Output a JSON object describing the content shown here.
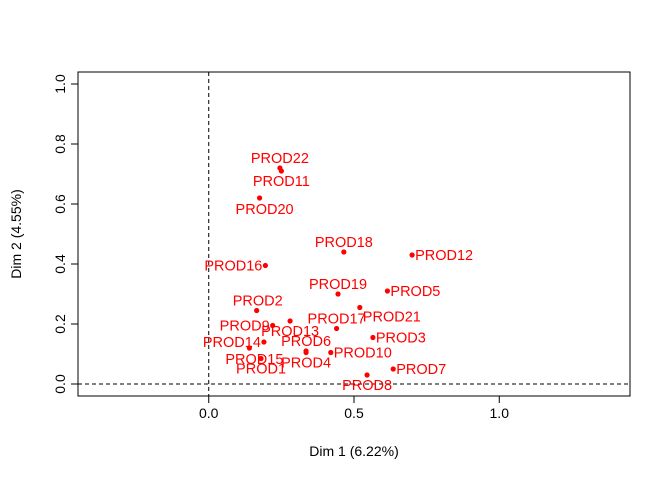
{
  "chart_data": {
    "type": "scatter",
    "xlabel": "Dim 1 (6.22%)",
    "ylabel": "Dim 2 (4.55%)",
    "xlim": [
      -0.45,
      1.45
    ],
    "ylim": [
      -0.04,
      1.04
    ],
    "x_ticks": [
      0.0,
      0.5,
      1.0
    ],
    "y_ticks": [
      0.0,
      0.2,
      0.4,
      0.6,
      0.8,
      1.0
    ],
    "x_tick_labels": [
      "0.0",
      "0.5",
      "1.0"
    ],
    "y_tick_labels": [
      "0.0",
      "0.2",
      "0.4",
      "0.6",
      "0.8",
      "1.0"
    ],
    "reference_lines": {
      "x": 0,
      "y": 0
    },
    "grid": false,
    "point_color": "#ff0000",
    "points": [
      {
        "label": "PROD1",
        "x": 0.18,
        "y": 0.085,
        "pos": "below"
      },
      {
        "label": "PROD2",
        "x": 0.165,
        "y": 0.245,
        "pos": "left-above"
      },
      {
        "label": "PROD3",
        "x": 0.565,
        "y": 0.155,
        "pos": "right"
      },
      {
        "label": "PROD4",
        "x": 0.335,
        "y": 0.105,
        "pos": "below"
      },
      {
        "label": "PROD5",
        "x": 0.615,
        "y": 0.31,
        "pos": "right"
      },
      {
        "label": "PROD6",
        "x": 0.335,
        "y": 0.11,
        "pos": "above"
      },
      {
        "label": "PROD7",
        "x": 0.635,
        "y": 0.05,
        "pos": "right"
      },
      {
        "label": "PROD8",
        "x": 0.545,
        "y": 0.03,
        "pos": "below"
      },
      {
        "label": "PROD9",
        "x": 0.22,
        "y": 0.195,
        "pos": "left"
      },
      {
        "label": "PROD10",
        "x": 0.42,
        "y": 0.105,
        "pos": "right"
      },
      {
        "label": "PROD11",
        "x": 0.25,
        "y": 0.71,
        "pos": "below"
      },
      {
        "label": "PROD12",
        "x": 0.7,
        "y": 0.43,
        "pos": "right"
      },
      {
        "label": "PROD13",
        "x": 0.28,
        "y": 0.21,
        "pos": "below"
      },
      {
        "label": "PROD14",
        "x": 0.19,
        "y": 0.14,
        "pos": "left"
      },
      {
        "label": "PROD15",
        "x": 0.14,
        "y": 0.12,
        "pos": "left-below"
      },
      {
        "label": "PROD16",
        "x": 0.195,
        "y": 0.395,
        "pos": "left"
      },
      {
        "label": "PROD17",
        "x": 0.44,
        "y": 0.185,
        "pos": "above"
      },
      {
        "label": "PROD18",
        "x": 0.465,
        "y": 0.44,
        "pos": "above"
      },
      {
        "label": "PROD19",
        "x": 0.445,
        "y": 0.3,
        "pos": "above"
      },
      {
        "label": "PROD20",
        "x": 0.175,
        "y": 0.62,
        "pos": "left-below"
      },
      {
        "label": "PROD21",
        "x": 0.52,
        "y": 0.255,
        "pos": "right-below"
      },
      {
        "label": "PROD22",
        "x": 0.245,
        "y": 0.72,
        "pos": "above"
      }
    ]
  }
}
